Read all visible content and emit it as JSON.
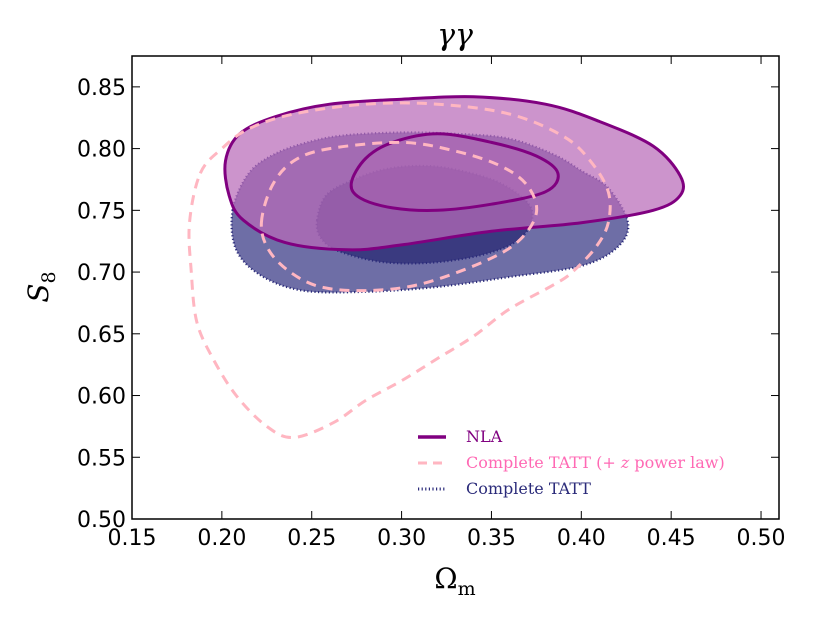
{
  "chart_data": {
    "type": "contour",
    "title": "γγ",
    "xlabel": "Ω",
    "xlabel_sub": "m",
    "ylabel": "S",
    "ylabel_sub": "8",
    "xlim": [
      0.15,
      0.51
    ],
    "ylim": [
      0.5,
      0.875
    ],
    "xticks": [
      0.15,
      0.2,
      0.25,
      0.3,
      0.35,
      0.4,
      0.45,
      0.5
    ],
    "xtick_labels": [
      "0.15",
      "0.20",
      "0.25",
      "0.30",
      "0.35",
      "0.40",
      "0.45",
      "0.50"
    ],
    "yticks": [
      0.5,
      0.55,
      0.6,
      0.65,
      0.7,
      0.75,
      0.8,
      0.85
    ],
    "ytick_labels": [
      "0.50",
      "0.55",
      "0.60",
      "0.65",
      "0.70",
      "0.75",
      "0.80",
      "0.85"
    ],
    "legend_position": "lower-right",
    "series": [
      {
        "name": "Complete TATT",
        "label_main": "Complete TATT",
        "label_suffix": "",
        "label_italic": "",
        "label_tail": "",
        "style": "dotted-filled",
        "color": "#2b2b7a",
        "fill_outer": "#6e6ea6",
        "fill_inner": "#3a3a80",
        "contours": [
          [
            [
              0.206,
              0.75
            ],
            [
              0.215,
              0.78
            ],
            [
              0.23,
              0.796
            ],
            [
              0.25,
              0.806
            ],
            [
              0.27,
              0.811
            ],
            [
              0.3,
              0.813
            ],
            [
              0.33,
              0.812
            ],
            [
              0.36,
              0.808
            ],
            [
              0.385,
              0.795
            ],
            [
              0.4,
              0.782
            ],
            [
              0.415,
              0.768
            ],
            [
              0.426,
              0.74
            ],
            [
              0.42,
              0.72
            ],
            [
              0.4,
              0.705
            ],
            [
              0.36,
              0.696
            ],
            [
              0.32,
              0.688
            ],
            [
              0.28,
              0.684
            ],
            [
              0.245,
              0.685
            ],
            [
              0.222,
              0.697
            ],
            [
              0.208,
              0.718
            ]
          ],
          [
            [
              0.253,
              0.742
            ],
            [
              0.258,
              0.762
            ],
            [
              0.272,
              0.774
            ],
            [
              0.29,
              0.783
            ],
            [
              0.31,
              0.786
            ],
            [
              0.33,
              0.783
            ],
            [
              0.355,
              0.772
            ],
            [
              0.372,
              0.752
            ],
            [
              0.368,
              0.73
            ],
            [
              0.35,
              0.716
            ],
            [
              0.32,
              0.708
            ],
            [
              0.29,
              0.708
            ],
            [
              0.265,
              0.717
            ],
            [
              0.255,
              0.728
            ]
          ]
        ]
      },
      {
        "name": "NLA",
        "label_main": "NLA",
        "label_suffix": "",
        "label_italic": "",
        "label_tail": "",
        "style": "solid-filled",
        "color": "#800080",
        "fill": "#b86bb8",
        "contours": [
          [
            [
              0.202,
              0.79
            ],
            [
              0.21,
              0.812
            ],
            [
              0.23,
              0.826
            ],
            [
              0.26,
              0.836
            ],
            [
              0.3,
              0.84
            ],
            [
              0.34,
              0.842
            ],
            [
              0.38,
              0.836
            ],
            [
              0.41,
              0.822
            ],
            [
              0.44,
              0.802
            ],
            [
              0.455,
              0.778
            ],
            [
              0.455,
              0.762
            ],
            [
              0.44,
              0.75
            ],
            [
              0.4,
              0.74
            ],
            [
              0.35,
              0.733
            ],
            [
              0.3,
              0.722
            ],
            [
              0.27,
              0.718
            ],
            [
              0.235,
              0.724
            ],
            [
              0.212,
              0.742
            ],
            [
              0.204,
              0.762
            ]
          ],
          [
            [
              0.272,
              0.772
            ],
            [
              0.28,
              0.792
            ],
            [
              0.295,
              0.805
            ],
            [
              0.32,
              0.812
            ],
            [
              0.35,
              0.805
            ],
            [
              0.375,
              0.794
            ],
            [
              0.387,
              0.78
            ],
            [
              0.38,
              0.765
            ],
            [
              0.35,
              0.755
            ],
            [
              0.32,
              0.75
            ],
            [
              0.295,
              0.752
            ],
            [
              0.277,
              0.76
            ]
          ]
        ]
      },
      {
        "name": "Complete TATT (+ z power law)",
        "label_main": "Complete TATT (",
        "label_suffix": "+",
        "label_italic": "z",
        "label_tail": " power law)",
        "style": "dashed",
        "color": "#ffb6c1",
        "label_color": "#ff69b4",
        "contours": [
          [
            [
              0.188,
              0.78
            ],
            [
              0.2,
              0.8
            ],
            [
              0.215,
              0.816
            ],
            [
              0.24,
              0.828
            ],
            [
              0.28,
              0.836
            ],
            [
              0.32,
              0.836
            ],
            [
              0.36,
              0.828
            ],
            [
              0.39,
              0.81
            ],
            [
              0.405,
              0.79
            ],
            [
              0.415,
              0.765
            ],
            [
              0.415,
              0.74
            ],
            [
              0.408,
              0.72
            ],
            [
              0.395,
              0.7
            ],
            [
              0.385,
              0.69
            ],
            [
              0.36,
              0.67
            ],
            [
              0.34,
              0.648
            ],
            [
              0.32,
              0.63
            ],
            [
              0.3,
              0.612
            ],
            [
              0.28,
              0.596
            ],
            [
              0.262,
              0.578
            ],
            [
              0.24,
              0.566
            ],
            [
              0.225,
              0.575
            ],
            [
              0.208,
              0.6
            ],
            [
              0.195,
              0.63
            ],
            [
              0.186,
              0.66
            ],
            [
              0.183,
              0.7
            ],
            [
              0.182,
              0.74
            ]
          ],
          [
            [
              0.222,
              0.74
            ],
            [
              0.228,
              0.77
            ],
            [
              0.24,
              0.79
            ],
            [
              0.26,
              0.8
            ],
            [
              0.3,
              0.805
            ],
            [
              0.33,
              0.798
            ],
            [
              0.355,
              0.786
            ],
            [
              0.37,
              0.77
            ],
            [
              0.375,
              0.748
            ],
            [
              0.365,
              0.725
            ],
            [
              0.345,
              0.708
            ],
            [
              0.31,
              0.69
            ],
            [
              0.28,
              0.685
            ],
            [
              0.255,
              0.688
            ],
            [
              0.238,
              0.7
            ],
            [
              0.226,
              0.718
            ]
          ]
        ]
      }
    ]
  }
}
